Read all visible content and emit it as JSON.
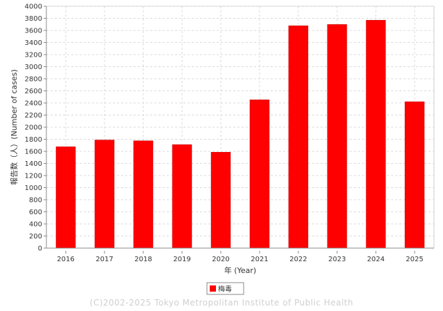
{
  "chart_data": {
    "type": "bar",
    "categories": [
      "2016",
      "2017",
      "2018",
      "2019",
      "2020",
      "2021",
      "2022",
      "2023",
      "2024",
      "2025"
    ],
    "series": [
      {
        "name": "梅毒",
        "values": [
          1676,
          1788,
          1775,
          1711,
          1586,
          2452,
          3677,
          3698,
          3769,
          2421
        ]
      }
    ],
    "xlabel": "年 (Year)",
    "ylabel": "報告数（人）(Number of cases)",
    "ylim": [
      0,
      4000
    ],
    "ytick_step": 200,
    "grid": true,
    "legend_position": "bottom-center",
    "colors": {
      "bar": "#ff0000",
      "bar_edge": "#bb0000",
      "grid": "#d9d9d9",
      "axis": "#888888"
    }
  },
  "footer": {
    "copyright": "(C)2002-2025 Tokyo Metropolitan Institute of Public Health"
  }
}
